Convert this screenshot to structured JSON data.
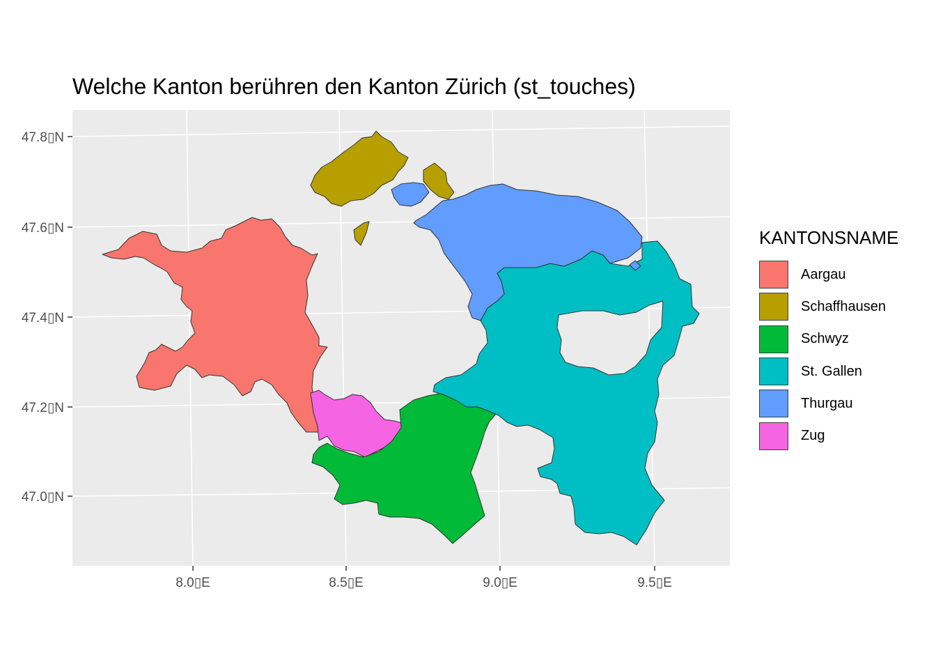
{
  "title": "Welche Kanton berühren den Kanton Zürich (st_touches)",
  "axes": {
    "y_ticks": [
      {
        "value": 47.8,
        "label": "47.8▯N"
      },
      {
        "value": 47.6,
        "label": "47.6▯N"
      },
      {
        "value": 47.4,
        "label": "47.4▯N"
      },
      {
        "value": 47.2,
        "label": "47.2▯N"
      },
      {
        "value": 47.0,
        "label": "47.0▯N"
      }
    ],
    "x_ticks": [
      {
        "value": 8.0,
        "label": "8.0▯E"
      },
      {
        "value": 8.5,
        "label": "8.5▯E"
      },
      {
        "value": 9.0,
        "label": "9.0▯E"
      },
      {
        "value": 9.5,
        "label": "9.5▯E"
      }
    ]
  },
  "legend": {
    "title": "KANTONSNAME",
    "items": [
      {
        "label": "Aargau",
        "color": "#F8766D"
      },
      {
        "label": "Schaffhausen",
        "color": "#B79F00"
      },
      {
        "label": "Schwyz",
        "color": "#00BA38"
      },
      {
        "label": "St. Gallen",
        "color": "#00BFC4"
      },
      {
        "label": "Thurgau",
        "color": "#619CFF"
      },
      {
        "label": "Zug",
        "color": "#F564E3"
      }
    ]
  },
  "colors": {
    "panel_background": "#EBEBEB",
    "grid": "#FFFFFF",
    "outline": "#333333"
  }
}
